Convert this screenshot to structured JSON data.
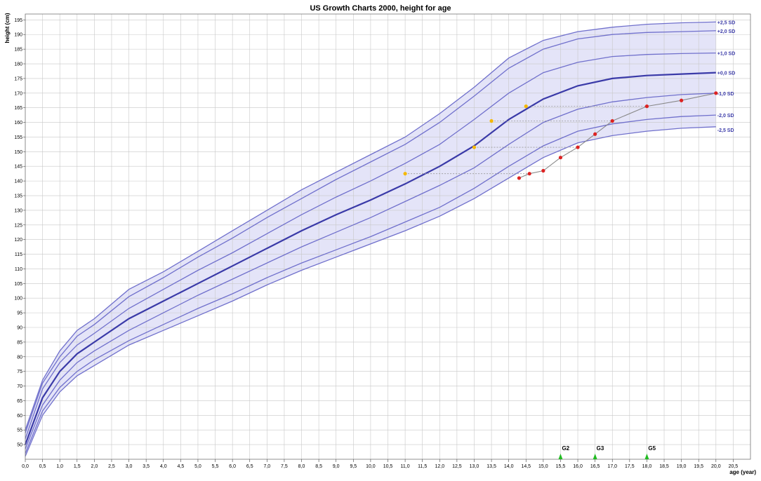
{
  "chart_data": {
    "type": "line",
    "title": "US Growth Charts 2000, height for age",
    "xlabel": "age (year)",
    "ylabel": "height (cm)",
    "xlim": [
      0,
      21
    ],
    "ylim": [
      45,
      197
    ],
    "grid": true,
    "x_ticks": [
      0,
      0.5,
      1,
      1.5,
      2,
      2.5,
      3,
      3.5,
      4,
      4.5,
      5,
      5.5,
      6,
      6.5,
      7,
      7.5,
      8,
      8.5,
      9,
      9.5,
      10,
      10.5,
      11,
      11.5,
      12,
      12.5,
      13,
      13.5,
      14,
      14.5,
      15,
      15.5,
      16,
      16.5,
      17,
      17.5,
      18,
      18.5,
      19,
      19.5,
      20,
      20.5
    ],
    "x_tick_labels": [
      "0,0",
      "0,5",
      "1,0",
      "1,5",
      "2,0",
      "2,5",
      "3,0",
      "3,5",
      "4,0",
      "4,5",
      "5,0",
      "5,5",
      "6,0",
      "6,5",
      "7,0",
      "7,5",
      "8,0",
      "8,5",
      "9,0",
      "9,5",
      "10,0",
      "10,5",
      "11,0",
      "11,5",
      "12,0",
      "12,5",
      "13,0",
      "13,5",
      "14,0",
      "14,5",
      "15,0",
      "15,5",
      "16,0",
      "16,5",
      "17,0",
      "17,5",
      "18,0",
      "18,5",
      "19,0",
      "19,5",
      "20,0",
      "20,5"
    ],
    "y_ticks": [
      50,
      55,
      60,
      65,
      70,
      75,
      80,
      85,
      90,
      95,
      100,
      105,
      110,
      115,
      120,
      125,
      130,
      135,
      140,
      145,
      150,
      155,
      160,
      165,
      170,
      175,
      180,
      185,
      190,
      195
    ],
    "y_tick_labels": [
      "50",
      "55",
      "60",
      "65",
      "70",
      "75",
      "80",
      "85",
      "90",
      "95",
      "100",
      "105",
      "110",
      "115",
      "120",
      "125",
      "130",
      "135",
      "140",
      "145",
      "150",
      "155",
      "160",
      "165",
      "170",
      "175",
      "180",
      "185",
      "190",
      "195"
    ],
    "band_color": "#e4e4f8",
    "curve_color": "#7070cc",
    "median_color": "#3a3aa8",
    "percentile_curves": [
      {
        "name": "+2,5 SD",
        "x": [
          0,
          0.5,
          1,
          1.5,
          2,
          3,
          4,
          5,
          6,
          7,
          8,
          9,
          10,
          11,
          12,
          13,
          14,
          15,
          16,
          17,
          18,
          19,
          20
        ],
        "y": [
          55,
          72,
          82,
          89,
          93,
          103,
          109,
          116,
          123,
          130,
          137,
          143,
          149,
          155,
          163,
          172,
          182,
          188,
          191,
          192.5,
          193.5,
          194,
          194.3
        ]
      },
      {
        "name": "+2,0 SD",
        "x": [
          0,
          0.5,
          1,
          1.5,
          2,
          3,
          4,
          5,
          6,
          7,
          8,
          9,
          10,
          11,
          12,
          13,
          14,
          15,
          16,
          17,
          18,
          19,
          20
        ],
        "y": [
          54,
          71,
          80,
          87,
          91,
          100.5,
          107,
          114,
          120.5,
          127.5,
          134,
          140.5,
          146.5,
          152.5,
          160,
          169,
          178.5,
          185,
          188.5,
          190,
          190.7,
          191,
          191.3
        ]
      },
      {
        "name": "+1,0 SD",
        "x": [
          0,
          0.5,
          1,
          1.5,
          2,
          3,
          4,
          5,
          6,
          7,
          8,
          9,
          10,
          11,
          12,
          13,
          14,
          15,
          16,
          17,
          18,
          19,
          20
        ],
        "y": [
          52,
          69,
          78,
          84,
          88,
          96.5,
          103,
          109.5,
          115.5,
          122,
          128.5,
          134.5,
          140,
          146,
          152.5,
          161,
          170,
          177,
          180.5,
          182.5,
          183.2,
          183.5,
          183.7
        ]
      },
      {
        "name": "+0,0 SD",
        "x": [
          0,
          0.5,
          1,
          1.5,
          2,
          3,
          4,
          5,
          6,
          7,
          8,
          9,
          10,
          11,
          12,
          13,
          14,
          15,
          16,
          17,
          18,
          19,
          20
        ],
        "y": [
          50,
          66,
          75,
          81,
          85,
          93,
          99,
          105,
          111,
          117,
          123,
          128.5,
          133.5,
          139,
          145,
          152,
          161,
          168,
          172.5,
          175,
          176,
          176.5,
          177
        ]
      },
      {
        "name": "-1,0 SD",
        "x": [
          0,
          0.5,
          1,
          1.5,
          2,
          3,
          4,
          5,
          6,
          7,
          8,
          9,
          10,
          11,
          12,
          13,
          14,
          15,
          16,
          17,
          18,
          19,
          20
        ],
        "y": [
          48.5,
          63.5,
          72,
          78,
          82,
          89,
          95,
          101,
          106.5,
          112,
          117.5,
          122.5,
          127.5,
          133,
          138.5,
          144.5,
          152.5,
          160,
          164.5,
          167,
          168.5,
          169.5,
          170
        ]
      },
      {
        "name": "-2,0 SD",
        "x": [
          0,
          0.5,
          1,
          1.5,
          2,
          3,
          4,
          5,
          6,
          7,
          8,
          9,
          10,
          11,
          12,
          13,
          14,
          15,
          16,
          17,
          18,
          19,
          20
        ],
        "y": [
          47,
          61.5,
          69.5,
          75,
          79,
          85.5,
          91,
          96.5,
          101.5,
          107,
          112,
          116.5,
          121,
          126,
          131,
          137.5,
          145,
          152,
          157,
          159.5,
          161,
          162,
          162.5
        ]
      },
      {
        "name": "-2,5 SD",
        "x": [
          0,
          0.5,
          1,
          1.5,
          2,
          3,
          4,
          5,
          6,
          7,
          8,
          9,
          10,
          11,
          12,
          13,
          14,
          15,
          16,
          17,
          18,
          19,
          20
        ],
        "y": [
          46,
          60,
          68,
          73.5,
          77,
          84,
          89,
          94,
          99,
          104.5,
          109.5,
          114,
          118.5,
          123,
          128,
          134,
          141,
          148,
          153,
          155.5,
          157,
          158,
          158.5
        ]
      }
    ],
    "sd_labels": [
      "+2,5 SD",
      "+2,0 SD",
      "+1,0 SD",
      "+0,0 SD",
      "-1,0 SD",
      "-2,0 SD",
      "-2,5 SD"
    ],
    "patient_series": {
      "color": "#dd2222",
      "line_color": "#888888",
      "x": [
        14.3,
        14.6,
        15.0,
        15.5,
        16.0,
        16.5,
        17.0,
        18.0,
        19.0,
        20.0
      ],
      "y": [
        141,
        142.5,
        143.5,
        148,
        151.5,
        156,
        160.5,
        165.5,
        167.5,
        170
      ]
    },
    "bone_age_series": {
      "color": "#f5b800",
      "x": [
        11.0,
        13.0,
        13.5,
        14.5
      ],
      "y": [
        142.5,
        151.5,
        160.5,
        165.5
      ],
      "link_to_x": [
        14.6,
        16.0,
        17.0,
        18.0
      ]
    },
    "pubertal_stages": [
      {
        "label": "G2",
        "x": 15.5
      },
      {
        "label": "G3",
        "x": 16.5
      },
      {
        "label": "G5",
        "x": 18.0
      }
    ],
    "stage_marker_color": "#22bb22"
  }
}
